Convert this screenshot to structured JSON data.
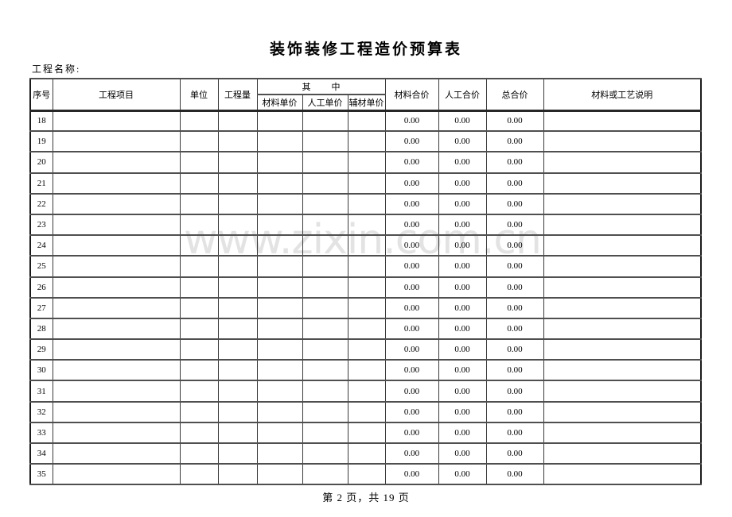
{
  "page": {
    "title": "装饰装修工程造价预算表",
    "project_name_label": "工程名称:",
    "watermark": "www.zixin.com.cn",
    "footer": "第 2 页，共 19 页"
  },
  "colors": {
    "watermark": "#e3e3e3",
    "grid_line": "#4f4f4f",
    "outer_border": "#1a1a1a",
    "text": "#000000"
  },
  "table": {
    "headers": {
      "no": "序号",
      "item": "工程项目",
      "unit": "单位",
      "quantity": "工程量",
      "among": "其中",
      "material_unit_price": "材料单价",
      "labor_unit_price": "人工单价",
      "aux_unit_price": "辅材单价",
      "material_total": "材料合价",
      "labor_total": "人工合价",
      "grand_total": "总合价",
      "description": "材料或工艺说明"
    },
    "rows": [
      {
        "no": "18",
        "item": "",
        "unit": "",
        "quantity": "",
        "material_unit_price": "",
        "labor_unit_price": "",
        "aux_unit_price": "",
        "material_total": "0.00",
        "labor_total": "0.00",
        "grand_total": "0.00",
        "description": ""
      },
      {
        "no": "19",
        "item": "",
        "unit": "",
        "quantity": "",
        "material_unit_price": "",
        "labor_unit_price": "",
        "aux_unit_price": "",
        "material_total": "0.00",
        "labor_total": "0.00",
        "grand_total": "0.00",
        "description": ""
      },
      {
        "no": "20",
        "item": "",
        "unit": "",
        "quantity": "",
        "material_unit_price": "",
        "labor_unit_price": "",
        "aux_unit_price": "",
        "material_total": "0.00",
        "labor_total": "0.00",
        "grand_total": "0.00",
        "description": ""
      },
      {
        "no": "21",
        "item": "",
        "unit": "",
        "quantity": "",
        "material_unit_price": "",
        "labor_unit_price": "",
        "aux_unit_price": "",
        "material_total": "0.00",
        "labor_total": "0.00",
        "grand_total": "0.00",
        "description": ""
      },
      {
        "no": "22",
        "item": "",
        "unit": "",
        "quantity": "",
        "material_unit_price": "",
        "labor_unit_price": "",
        "aux_unit_price": "",
        "material_total": "0.00",
        "labor_total": "0.00",
        "grand_total": "0.00",
        "description": ""
      },
      {
        "no": "23",
        "item": "",
        "unit": "",
        "quantity": "",
        "material_unit_price": "",
        "labor_unit_price": "",
        "aux_unit_price": "",
        "material_total": "0.00",
        "labor_total": "0.00",
        "grand_total": "0.00",
        "description": ""
      },
      {
        "no": "24",
        "item": "",
        "unit": "",
        "quantity": "",
        "material_unit_price": "",
        "labor_unit_price": "",
        "aux_unit_price": "",
        "material_total": "0.00",
        "labor_total": "0.00",
        "grand_total": "0.00",
        "description": ""
      },
      {
        "no": "25",
        "item": "",
        "unit": "",
        "quantity": "",
        "material_unit_price": "",
        "labor_unit_price": "",
        "aux_unit_price": "",
        "material_total": "0.00",
        "labor_total": "0.00",
        "grand_total": "0.00",
        "description": ""
      },
      {
        "no": "26",
        "item": "",
        "unit": "",
        "quantity": "",
        "material_unit_price": "",
        "labor_unit_price": "",
        "aux_unit_price": "",
        "material_total": "0.00",
        "labor_total": "0.00",
        "grand_total": "0.00",
        "description": ""
      },
      {
        "no": "27",
        "item": "",
        "unit": "",
        "quantity": "",
        "material_unit_price": "",
        "labor_unit_price": "",
        "aux_unit_price": "",
        "material_total": "0.00",
        "labor_total": "0.00",
        "grand_total": "0.00",
        "description": ""
      },
      {
        "no": "28",
        "item": "",
        "unit": "",
        "quantity": "",
        "material_unit_price": "",
        "labor_unit_price": "",
        "aux_unit_price": "",
        "material_total": "0.00",
        "labor_total": "0.00",
        "grand_total": "0.00",
        "description": ""
      },
      {
        "no": "29",
        "item": "",
        "unit": "",
        "quantity": "",
        "material_unit_price": "",
        "labor_unit_price": "",
        "aux_unit_price": "",
        "material_total": "0.00",
        "labor_total": "0.00",
        "grand_total": "0.00",
        "description": ""
      },
      {
        "no": "30",
        "item": "",
        "unit": "",
        "quantity": "",
        "material_unit_price": "",
        "labor_unit_price": "",
        "aux_unit_price": "",
        "material_total": "0.00",
        "labor_total": "0.00",
        "grand_total": "0.00",
        "description": ""
      },
      {
        "no": "31",
        "item": "",
        "unit": "",
        "quantity": "",
        "material_unit_price": "",
        "labor_unit_price": "",
        "aux_unit_price": "",
        "material_total": "0.00",
        "labor_total": "0.00",
        "grand_total": "0.00",
        "description": ""
      },
      {
        "no": "32",
        "item": "",
        "unit": "",
        "quantity": "",
        "material_unit_price": "",
        "labor_unit_price": "",
        "aux_unit_price": "",
        "material_total": "0.00",
        "labor_total": "0.00",
        "grand_total": "0.00",
        "description": ""
      },
      {
        "no": "33",
        "item": "",
        "unit": "",
        "quantity": "",
        "material_unit_price": "",
        "labor_unit_price": "",
        "aux_unit_price": "",
        "material_total": "0.00",
        "labor_total": "0.00",
        "grand_total": "0.00",
        "description": ""
      },
      {
        "no": "34",
        "item": "",
        "unit": "",
        "quantity": "",
        "material_unit_price": "",
        "labor_unit_price": "",
        "aux_unit_price": "",
        "material_total": "0.00",
        "labor_total": "0.00",
        "grand_total": "0.00",
        "description": ""
      },
      {
        "no": "35",
        "item": "",
        "unit": "",
        "quantity": "",
        "material_unit_price": "",
        "labor_unit_price": "",
        "aux_unit_price": "",
        "material_total": "0.00",
        "labor_total": "0.00",
        "grand_total": "0.00",
        "description": ""
      }
    ]
  }
}
